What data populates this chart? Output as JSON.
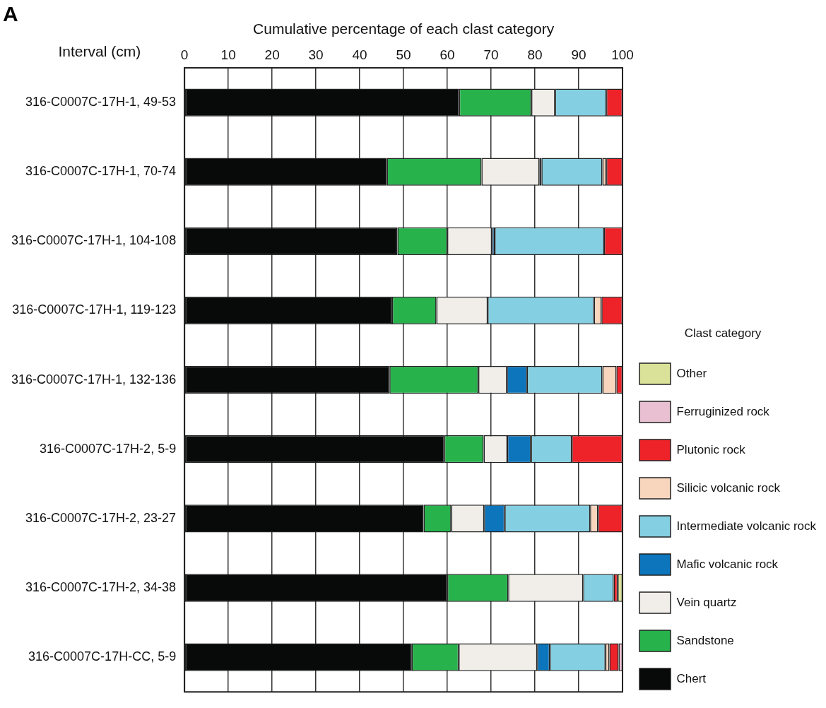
{
  "chart_data": {
    "type": "bar",
    "orientation": "horizontal",
    "stacked": true,
    "title": "A",
    "xlabel": "Cumulative percentage of each clast category",
    "ylabel": "Interval (cm)",
    "legend_title": "Clast category",
    "legend": "right",
    "grid": "x",
    "categories": [
      "316-C0007C-17H-1, 49-53",
      "316-C0007C-17H-1, 70-74",
      "316-C0007C-17H-1, 104-108",
      "316-C0007C-17H-1, 119-123",
      "316-C0007C-17H-1, 132-136",
      "316-C0007C-17H-2, 5-9",
      "316-C0007C-17H-2, 23-27",
      "316-C0007C-17H-2, 34-38",
      "316-C0007C-17H-CC, 5-9"
    ],
    "xlim": [
      0,
      100
    ],
    "xticks": [
      0,
      10,
      20,
      30,
      40,
      50,
      60,
      70,
      80,
      90,
      100
    ],
    "series": [
      {
        "name": "Chert",
        "color": "#080a0a",
        "values": [
          62.7,
          46.2,
          48.6,
          47.4,
          46.8,
          59.3,
          54.6,
          60.0,
          51.9
        ]
      },
      {
        "name": "Sandstone",
        "color": "#27b24c",
        "values": [
          16.5,
          21.6,
          11.4,
          10.1,
          20.3,
          9.0,
          6.3,
          13.9,
          10.7
        ]
      },
      {
        "name": "Vein quartz",
        "color": "#f1eeea",
        "values": [
          5.4,
          13.2,
          10.2,
          11.7,
          6.5,
          5.4,
          7.5,
          17.1,
          17.9
        ]
      },
      {
        "name": "Mafic volcanic rock",
        "color": "#0c75bc",
        "values": [
          null,
          0.5,
          0.6,
          null,
          4.6,
          5.4,
          4.7,
          null,
          2.9
        ]
      },
      {
        "name": "Intermediate volcanic rock",
        "color": "#84d0e2",
        "values": [
          11.7,
          13.9,
          25.0,
          24.3,
          17.2,
          9.3,
          19.5,
          7.0,
          12.7
        ]
      },
      {
        "name": "Silicic volcanic rock",
        "color": "#f8d5bd",
        "values": [
          null,
          0.9,
          null,
          1.7,
          3.2,
          null,
          1.8,
          null,
          0.9
        ]
      },
      {
        "name": "Plutonic rock",
        "color": "#ee2229",
        "values": [
          3.7,
          3.7,
          4.2,
          4.8,
          1.4,
          11.6,
          5.6,
          0.9,
          2.1
        ]
      },
      {
        "name": "Ferruginized rock",
        "color": "#e9bfd2",
        "values": [
          null,
          null,
          null,
          null,
          null,
          null,
          null,
          null,
          0.9
        ]
      },
      {
        "name": "Other",
        "color": "#d9e298",
        "values": [
          null,
          null,
          null,
          null,
          null,
          null,
          null,
          1.1,
          null
        ]
      }
    ]
  }
}
